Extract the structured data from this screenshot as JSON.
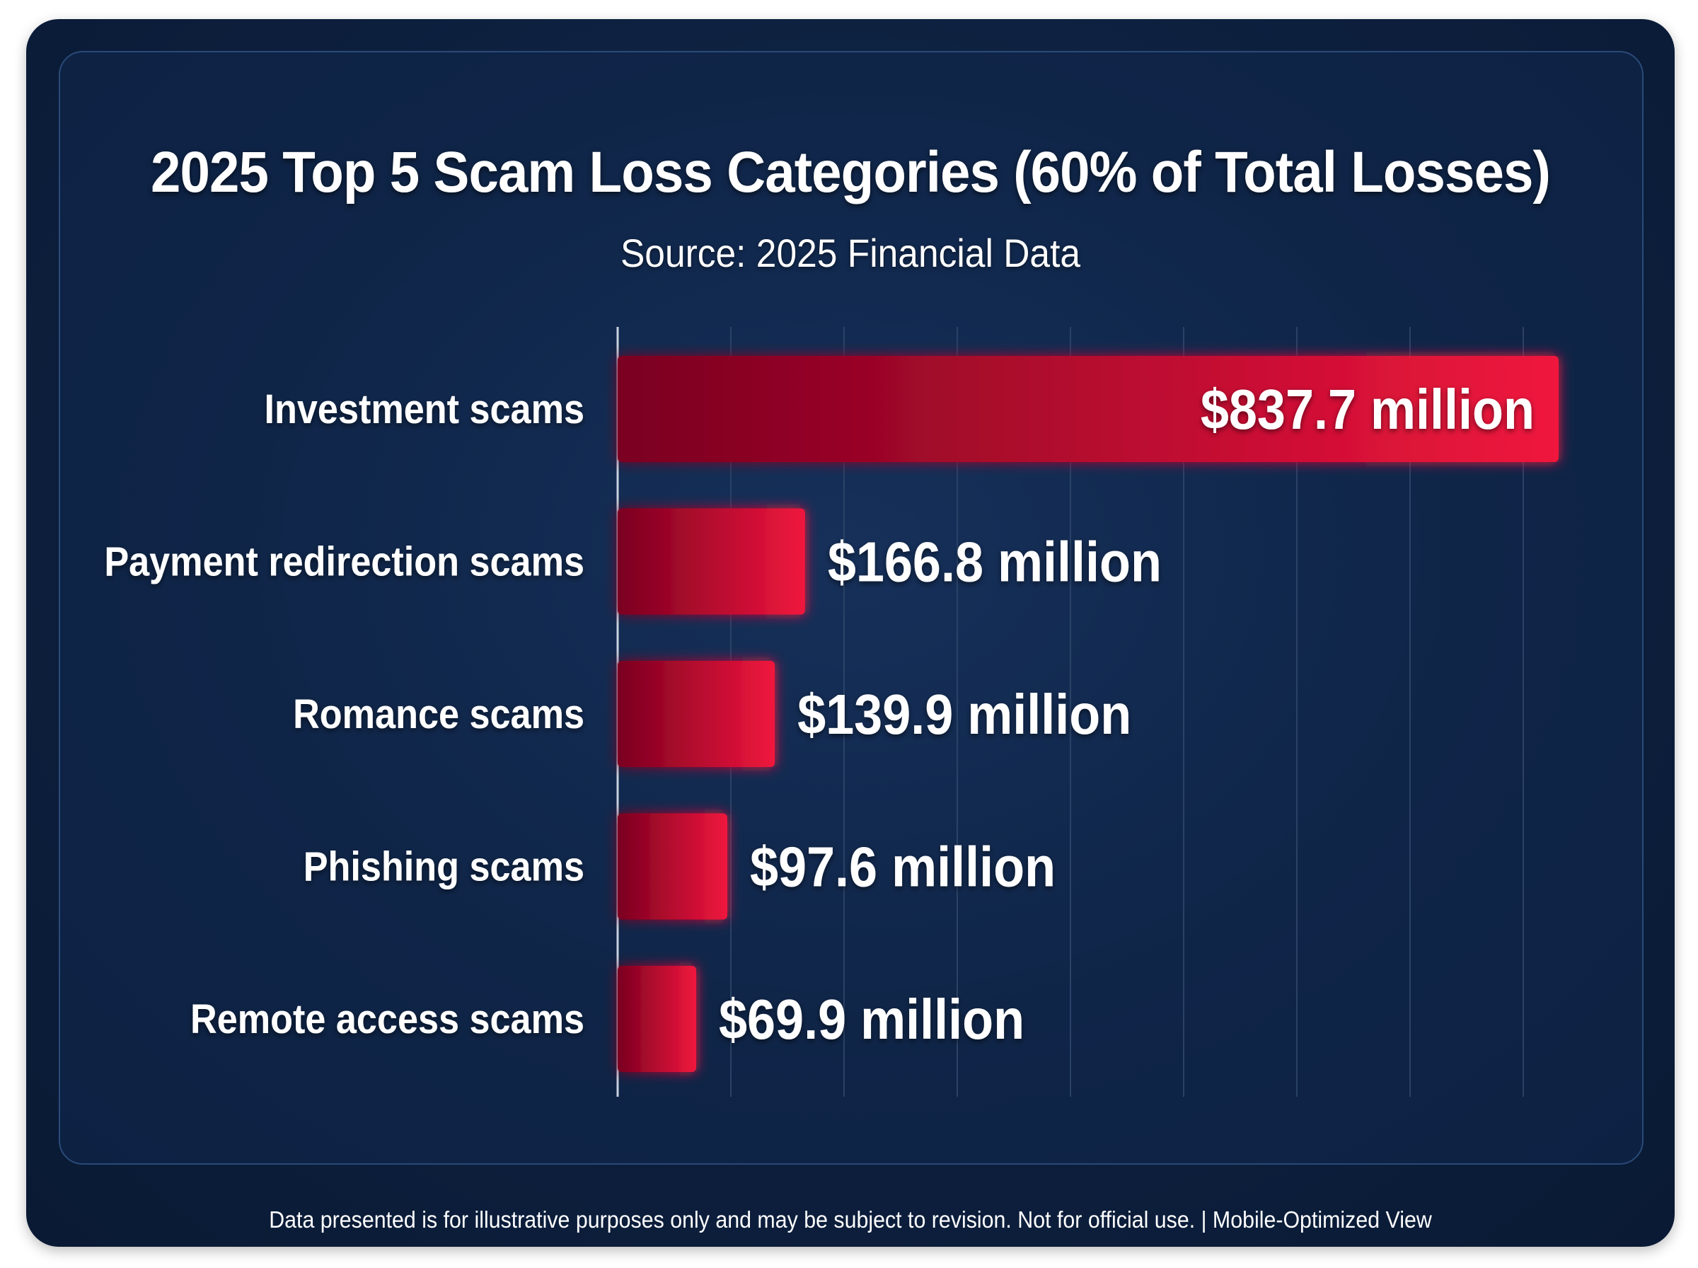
{
  "colors": {
    "background": "#0c1f3d",
    "panel": "#0f2548",
    "panel_border": "#2a4a78",
    "bar_dark": "#7a0020",
    "bar_bright": "#f0163d",
    "text": "#ffffff",
    "gridline": "#2a4266"
  },
  "chart_data": {
    "type": "bar",
    "orientation": "horizontal",
    "title": "2025 Top 5 Scam Loss Categories (60% of Total Losses)",
    "subtitle": "Source: 2025 Financial Data",
    "categories": [
      "Investment scams",
      "Payment redirection scams",
      "Romance scams",
      "Phishing scams",
      "Remote access scams"
    ],
    "values": [
      837.7,
      166.8,
      139.9,
      97.6,
      69.9
    ],
    "value_labels": [
      "$837.7 million",
      "$166.8 million",
      "$139.9 million",
      "$97.6 million",
      "$69.9 million"
    ],
    "unit": "million",
    "xlim": [
      0,
      900
    ],
    "grid": true,
    "legend": "none"
  },
  "footer": {
    "note": "Data presented is for illustrative purposes only and may be subject to revision. Not for official use. | Mobile-Optimized View"
  }
}
